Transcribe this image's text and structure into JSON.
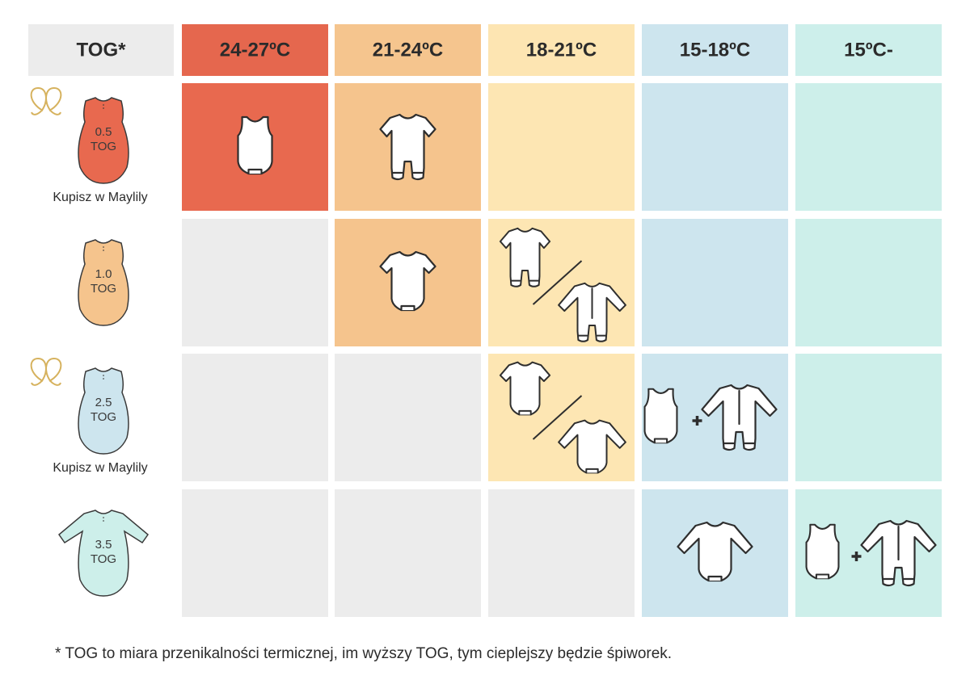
{
  "header": {
    "label": "TOG*",
    "columns": [
      "24-27ºC",
      "21-24ºC",
      "18-21ºC",
      "15-18ºC",
      "15ºC-"
    ]
  },
  "rows": [
    {
      "tog": "0.5",
      "unit": "TOG",
      "note": "Kupisz w Maylily"
    },
    {
      "tog": "1.0",
      "unit": "TOG"
    },
    {
      "tog": "2.5",
      "unit": "TOG",
      "note": "Kupisz w Maylily"
    },
    {
      "tog": "3.5",
      "unit": "TOG"
    }
  ],
  "footnote": "* TOG to miara przenikalności termicznej, im wyższy TOG, tym cieplejszy będzie śpiworek."
}
